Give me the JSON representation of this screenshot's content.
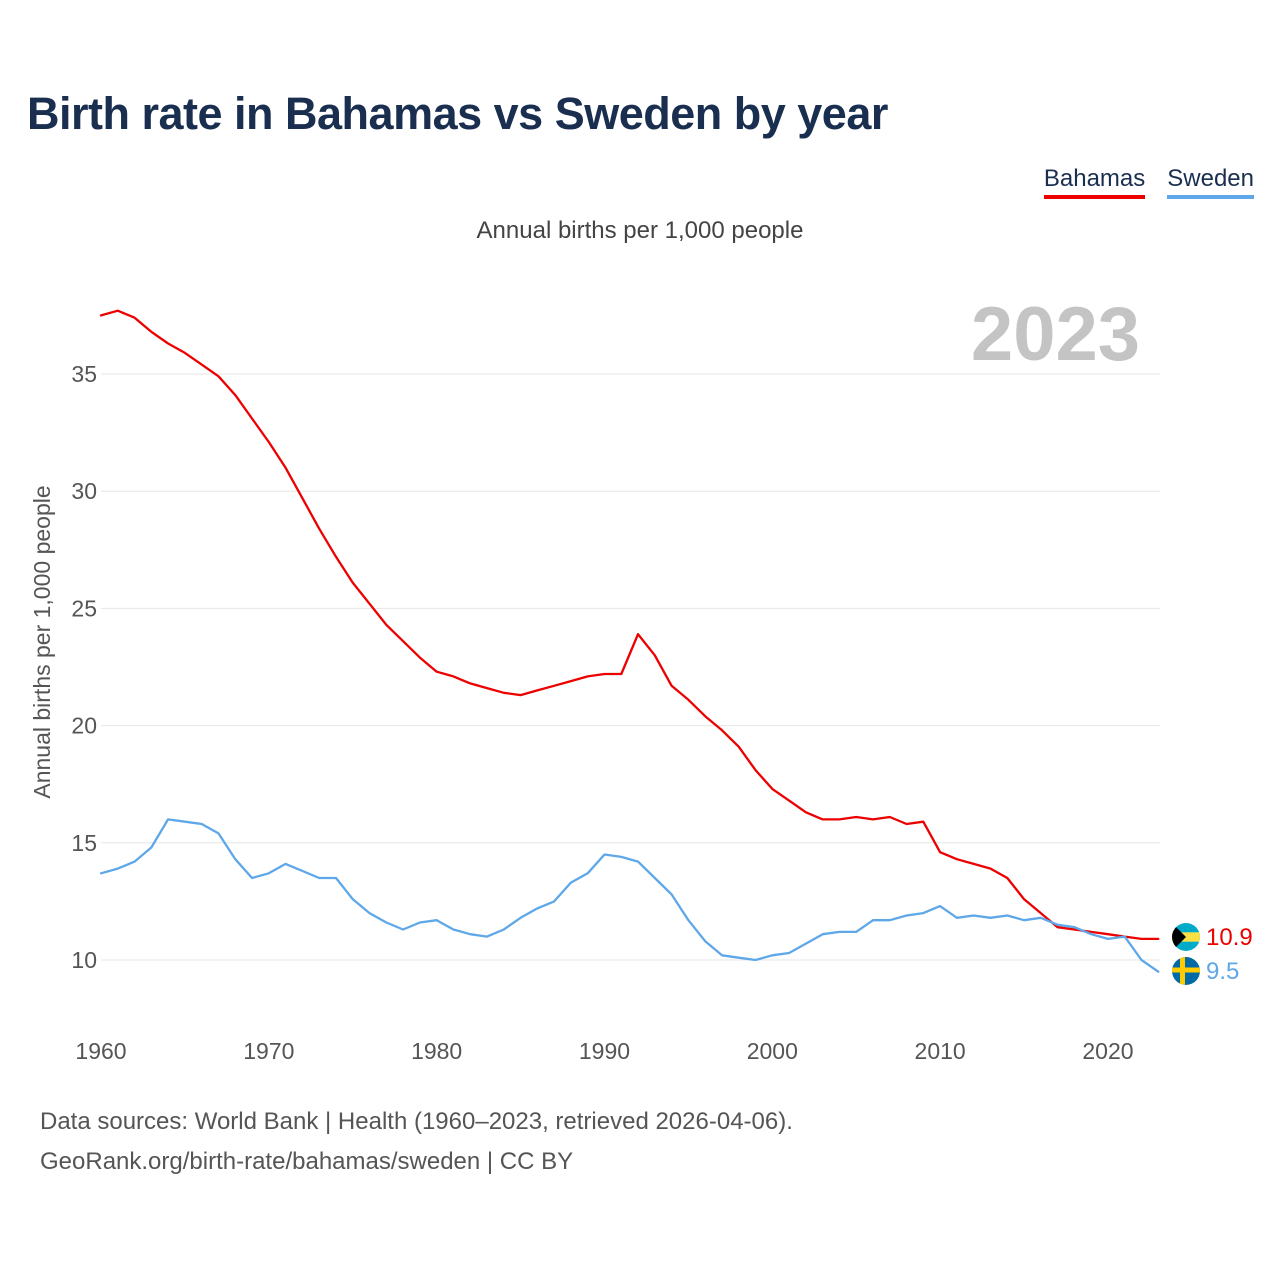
{
  "header": {
    "title": "Birth rate in Bahamas vs Sweden by year",
    "subtitle": "Annual births per 1,000 people"
  },
  "legend": {
    "bahamas": "Bahamas",
    "sweden": "Sweden"
  },
  "footer": {
    "line1": "Data sources: World Bank | Health (1960–2023, retrieved 2026-04-06).",
    "line2": "GeoRank.org/birth-rate/bahamas/sweden | CC BY"
  },
  "colors": {
    "bahamas": "#ec0000",
    "sweden": "#5ea7e8",
    "grid": "#e6e6e6",
    "axis_text": "#555555",
    "year_watermark": "#c4c4c4"
  },
  "chart_data": {
    "type": "line",
    "title": "Birth rate in Bahamas vs Sweden by year",
    "xlabel": "",
    "ylabel": "Annual births per 1,000 people",
    "year_label": "2023",
    "xlim": [
      1960,
      2023
    ],
    "ylim": [
      8,
      38
    ],
    "x_ticks": [
      1960,
      1970,
      1980,
      1990,
      2000,
      2010,
      2020
    ],
    "y_ticks": [
      10,
      15,
      20,
      25,
      30,
      35
    ],
    "grid": true,
    "legend_position": "top-right",
    "x": [
      1960,
      1961,
      1962,
      1963,
      1964,
      1965,
      1966,
      1967,
      1968,
      1969,
      1970,
      1971,
      1972,
      1973,
      1974,
      1975,
      1976,
      1977,
      1978,
      1979,
      1980,
      1981,
      1982,
      1983,
      1984,
      1985,
      1986,
      1987,
      1988,
      1989,
      1990,
      1991,
      1992,
      1993,
      1994,
      1995,
      1996,
      1997,
      1998,
      1999,
      2000,
      2001,
      2002,
      2003,
      2004,
      2005,
      2006,
      2007,
      2008,
      2009,
      2010,
      2011,
      2012,
      2013,
      2014,
      2015,
      2016,
      2017,
      2018,
      2019,
      2020,
      2021,
      2022,
      2023
    ],
    "series": [
      {
        "name": "Bahamas",
        "end_label": "10.9",
        "values": [
          37.5,
          37.7,
          37.4,
          36.8,
          36.3,
          35.9,
          35.4,
          34.9,
          34.1,
          33.1,
          32.1,
          31.0,
          29.7,
          28.4,
          27.2,
          26.1,
          25.2,
          24.3,
          23.6,
          22.9,
          22.3,
          22.1,
          21.8,
          21.6,
          21.4,
          21.3,
          21.5,
          21.7,
          21.9,
          22.1,
          22.2,
          22.2,
          23.9,
          23.0,
          21.7,
          21.1,
          20.4,
          19.8,
          19.1,
          18.1,
          17.3,
          16.8,
          16.3,
          16.0,
          16.0,
          16.1,
          16.0,
          16.1,
          15.8,
          15.9,
          14.6,
          14.3,
          14.1,
          13.9,
          13.5,
          12.6,
          12.0,
          11.4,
          11.3,
          11.2,
          11.1,
          11.0,
          10.9,
          10.9
        ]
      },
      {
        "name": "Sweden",
        "end_label": "9.5",
        "values": [
          13.7,
          13.9,
          14.2,
          14.8,
          16.0,
          15.9,
          15.8,
          15.4,
          14.3,
          13.5,
          13.7,
          14.1,
          13.8,
          13.5,
          13.5,
          12.6,
          12.0,
          11.6,
          11.3,
          11.6,
          11.7,
          11.3,
          11.1,
          11.0,
          11.3,
          11.8,
          12.2,
          12.5,
          13.3,
          13.7,
          14.5,
          14.4,
          14.2,
          13.5,
          12.8,
          11.7,
          10.8,
          10.2,
          10.1,
          10.0,
          10.2,
          10.3,
          10.7,
          11.1,
          11.2,
          11.2,
          11.7,
          11.7,
          11.9,
          12.0,
          12.3,
          11.8,
          11.9,
          11.8,
          11.9,
          11.7,
          11.8,
          11.5,
          11.4,
          11.1,
          10.9,
          11.0,
          10.0,
          9.5
        ]
      }
    ]
  }
}
